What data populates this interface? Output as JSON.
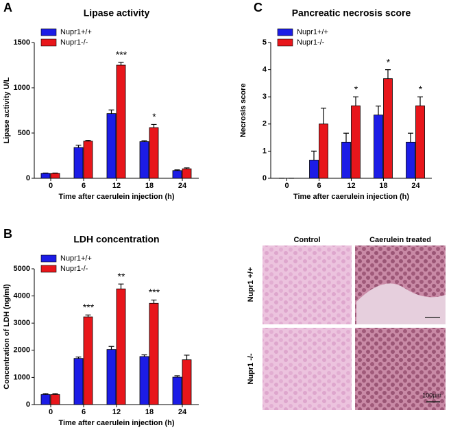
{
  "chart_data": [
    {
      "type": "bar",
      "panel_label": "A",
      "title": "Lipase activity",
      "ylabel": "Lipase activity U/L",
      "xlabel": "Time after caerulein injection (h)",
      "categories": [
        "0",
        "6",
        "12",
        "18",
        "24"
      ],
      "series": [
        {
          "name": "Nupr1+/+",
          "color": "#1c1ce6",
          "values": [
            55,
            340,
            715,
            405,
            85
          ],
          "errors": [
            3,
            25,
            40,
            10,
            8
          ]
        },
        {
          "name": "Nupr1-/-",
          "color": "#e8161b",
          "values": [
            55,
            410,
            1250,
            560,
            105
          ],
          "errors": [
            3,
            10,
            30,
            35,
            10
          ]
        }
      ],
      "ylim": [
        0,
        1500
      ],
      "yticks": [
        0,
        500,
        1000,
        1500
      ],
      "legend": "upper left",
      "annotations": [
        {
          "text": "***",
          "x": "12"
        },
        {
          "text": "*",
          "x": "18"
        }
      ]
    },
    {
      "type": "bar",
      "panel_label": "B",
      "title": "LDH concentration",
      "ylabel": "Concentration of LDH (ng/ml)",
      "xlabel": "Time after caerulein injection (h)",
      "categories": [
        "0",
        "6",
        "12",
        "18",
        "24"
      ],
      "series": [
        {
          "name": "Nupr1+/+",
          "color": "#1c1ce6",
          "values": [
            370,
            1700,
            2030,
            1770,
            1010
          ],
          "errors": [
            30,
            50,
            110,
            60,
            50
          ]
        },
        {
          "name": "Nupr1-/-",
          "color": "#e8161b",
          "values": [
            370,
            3230,
            4260,
            3730,
            1650
          ],
          "errors": [
            30,
            70,
            180,
            120,
            170
          ]
        }
      ],
      "ylim": [
        0,
        5000
      ],
      "yticks": [
        0,
        1000,
        2000,
        3000,
        4000,
        5000
      ],
      "legend": "upper left",
      "annotations": [
        {
          "text": "***",
          "x": "6"
        },
        {
          "text": "**",
          "x": "12"
        },
        {
          "text": "***",
          "x": "18"
        }
      ]
    },
    {
      "type": "bar",
      "panel_label": "C",
      "title": "Pancreatic necrosis score",
      "ylabel": "Necrosis score",
      "xlabel": "Time after caerulein injection (h)",
      "categories": [
        "0",
        "6",
        "12",
        "18",
        "24"
      ],
      "series": [
        {
          "name": "Nupr1+/+",
          "color": "#1c1ce6",
          "values": [
            0,
            0.67,
            1.33,
            2.33,
            1.33
          ],
          "errors": [
            0,
            0.33,
            0.33,
            0.33,
            0.33
          ]
        },
        {
          "name": "Nupr1-/-",
          "color": "#e8161b",
          "values": [
            0,
            2.0,
            2.67,
            3.67,
            2.67
          ],
          "errors": [
            0,
            0.58,
            0.33,
            0.33,
            0.33
          ]
        }
      ],
      "ylim": [
        0,
        5
      ],
      "yticks": [
        0,
        1,
        2,
        3,
        4,
        5
      ],
      "legend": "upper left",
      "annotations": [
        {
          "text": "*",
          "x": "12"
        },
        {
          "text": "*",
          "x": "18"
        },
        {
          "text": "*",
          "x": "24"
        }
      ]
    }
  ],
  "histology": {
    "columns": [
      "Control",
      "Caerulein treated"
    ],
    "rows": [
      "Nupr1 +/+",
      "Nupr1 -/-"
    ],
    "scale_bar": "100µm"
  }
}
